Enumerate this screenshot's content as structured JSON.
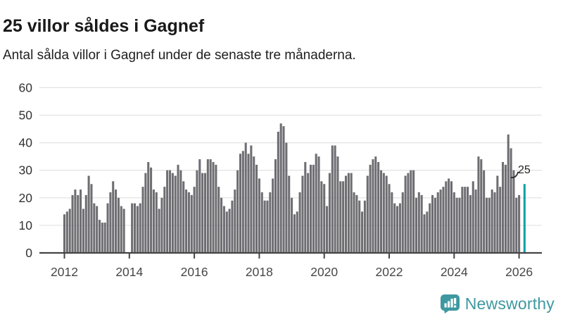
{
  "header": {
    "title": "25 villor såldes i Gagnef",
    "subtitle": "Antal sålda villor i Gagnef under de senaste tre månaderna."
  },
  "chart_data": {
    "type": "bar",
    "title": "25 villor såldes i Gagnef",
    "subtitle": "Antal sålda villor i Gagnef under de senaste tre månaderna.",
    "x_start": "2012-01",
    "frequency": "monthly",
    "values": [
      14,
      15,
      16,
      21,
      23,
      21,
      23,
      16,
      21,
      28,
      25,
      18,
      17,
      12,
      11,
      11,
      18,
      22,
      26,
      23,
      20,
      17,
      16,
      0,
      0,
      18,
      18,
      17,
      18,
      24,
      29,
      33,
      31,
      23,
      22,
      16,
      20,
      24,
      30,
      30,
      29,
      28,
      32,
      30,
      26,
      23,
      22,
      21,
      24,
      30,
      34,
      29,
      29,
      34,
      34,
      33,
      32,
      24,
      20,
      17,
      15,
      16,
      19,
      23,
      30,
      36,
      37,
      40,
      36,
      39,
      35,
      32,
      27,
      22,
      19,
      19,
      22,
      27,
      34,
      44,
      47,
      46,
      40,
      28,
      20,
      14,
      15,
      22,
      28,
      33,
      29,
      32,
      32,
      36,
      35,
      26,
      25,
      17,
      29,
      39,
      39,
      35,
      26,
      26,
      28,
      29,
      29,
      22,
      21,
      19,
      15,
      19,
      28,
      32,
      34,
      35,
      33,
      30,
      29,
      28,
      25,
      22,
      18,
      17,
      18,
      22,
      28,
      29,
      30,
      30,
      20,
      22,
      21,
      14,
      15,
      18,
      21,
      20,
      22,
      23,
      24,
      26,
      27,
      26,
      22,
      20,
      20,
      24,
      24,
      24,
      21,
      26,
      23,
      35,
      34,
      30,
      20,
      20,
      23,
      22,
      28,
      24,
      33,
      32,
      43,
      38,
      30,
      20,
      21,
      0,
      25
    ],
    "x_tick_labels": [
      "2012",
      "2014",
      "2016",
      "2018",
      "2020",
      "2022",
      "2024",
      "2026"
    ],
    "y_tick_labels": [
      "0",
      "10",
      "20",
      "30",
      "40",
      "50",
      "60"
    ],
    "ylim": [
      0,
      60
    ],
    "grid": "horizontal",
    "legend": "none",
    "bar_color": "#6d6d72",
    "axis_color": "#454545",
    "gridline_color": "#e4e4e4",
    "label_color": "#3d3d3d",
    "highlight": {
      "index": 170,
      "value": 25,
      "label": "25",
      "color": "#0aa0a5"
    }
  },
  "footer": {
    "brand": "Newsworthy"
  }
}
